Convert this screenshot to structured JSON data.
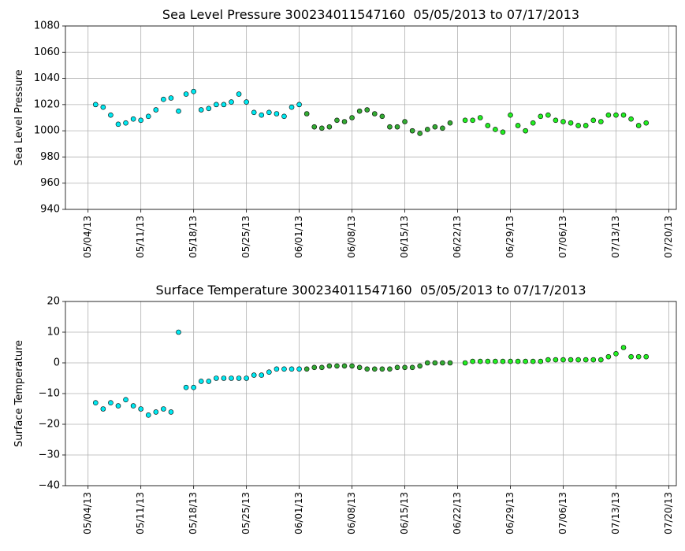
{
  "chart_data": [
    {
      "type": "scatter",
      "title": "Sea Level Pressure 300234011547160  05/05/2013 to 07/17/2013",
      "y_label": "Sea Level Pressure",
      "xlim": [
        "2013-05-01",
        "2013-07-21"
      ],
      "xticks": [
        {
          "value": "2013-05-04",
          "label": "05/04/13"
        },
        {
          "value": "2013-05-11",
          "label": "05/11/13"
        },
        {
          "value": "2013-05-18",
          "label": "05/18/13"
        },
        {
          "value": "2013-05-25",
          "label": "05/25/13"
        },
        {
          "value": "2013-06-01",
          "label": "06/01/13"
        },
        {
          "value": "2013-06-08",
          "label": "06/08/13"
        },
        {
          "value": "2013-06-15",
          "label": "06/15/13"
        },
        {
          "value": "2013-06-22",
          "label": "06/22/13"
        },
        {
          "value": "2013-06-29",
          "label": "06/29/13"
        },
        {
          "value": "2013-07-06",
          "label": "07/06/13"
        },
        {
          "value": "2013-07-13",
          "label": "07/13/13"
        },
        {
          "value": "2013-07-20",
          "label": "07/20/13"
        }
      ],
      "ylim": [
        940,
        1080
      ],
      "yticks": [
        940,
        960,
        980,
        1000,
        1020,
        1040,
        1060,
        1080
      ],
      "grid": true,
      "series": [
        {
          "color": "#00e8f0",
          "x": [
            "2013-05-05",
            "2013-05-06",
            "2013-05-07",
            "2013-05-08",
            "2013-05-09",
            "2013-05-10",
            "2013-05-11",
            "2013-05-12",
            "2013-05-13",
            "2013-05-14",
            "2013-05-15",
            "2013-05-16",
            "2013-05-17",
            "2013-05-18",
            "2013-05-19",
            "2013-05-20",
            "2013-05-21",
            "2013-05-22",
            "2013-05-23",
            "2013-05-24",
            "2013-05-25",
            "2013-05-26",
            "2013-05-27",
            "2013-05-28",
            "2013-05-29",
            "2013-05-30",
            "2013-05-31",
            "2013-06-01"
          ],
          "values": [
            1020,
            1018,
            1012,
            1005,
            1006,
            1009,
            1008,
            1011,
            1016,
            1024,
            1025,
            1015,
            1028,
            1030,
            1016,
            1017,
            1020,
            1020,
            1022,
            1028,
            1022,
            1014,
            1012,
            1014,
            1013,
            1011,
            1018,
            1020
          ]
        },
        {
          "color": "#33aa33",
          "x": [
            "2013-06-02",
            "2013-06-03",
            "2013-06-04",
            "2013-06-05",
            "2013-06-06",
            "2013-06-07",
            "2013-06-08",
            "2013-06-09",
            "2013-06-10",
            "2013-06-11",
            "2013-06-12",
            "2013-06-13",
            "2013-06-14",
            "2013-06-15",
            "2013-06-16",
            "2013-06-17",
            "2013-06-18",
            "2013-06-19",
            "2013-06-20",
            "2013-06-21"
          ],
          "values": [
            1013,
            1003,
            1002,
            1003,
            1008,
            1007,
            1010,
            1015,
            1016,
            1013,
            1011,
            1003,
            1003,
            1007,
            1000,
            998,
            1001,
            1003,
            1002,
            1006
          ]
        },
        {
          "color": "#22ee22",
          "x": [
            "2013-06-23",
            "2013-06-24",
            "2013-06-25",
            "2013-06-26",
            "2013-06-27",
            "2013-06-28",
            "2013-06-29",
            "2013-06-30",
            "2013-07-01",
            "2013-07-02",
            "2013-07-03",
            "2013-07-04",
            "2013-07-05",
            "2013-07-06",
            "2013-07-07",
            "2013-07-08",
            "2013-07-09",
            "2013-07-10",
            "2013-07-11",
            "2013-07-12",
            "2013-07-13",
            "2013-07-14",
            "2013-07-15",
            "2013-07-16",
            "2013-07-17"
          ],
          "values": [
            1008,
            1008,
            1010,
            1004,
            1001,
            999,
            1012,
            1004,
            1000,
            1006,
            1011,
            1012,
            1008,
            1007,
            1006,
            1004,
            1004,
            1008,
            1007,
            1012,
            1012,
            1012,
            1009,
            1004,
            1006
          ]
        }
      ]
    },
    {
      "type": "scatter",
      "title": "Surface Temperature 300234011547160  05/05/2013 to 07/17/2013",
      "y_label": "Surface Temperature",
      "xlim": [
        "2013-05-01",
        "2013-07-21"
      ],
      "xticks": [
        {
          "value": "2013-05-04",
          "label": "05/04/13"
        },
        {
          "value": "2013-05-11",
          "label": "05/11/13"
        },
        {
          "value": "2013-05-18",
          "label": "05/18/13"
        },
        {
          "value": "2013-05-25",
          "label": "05/25/13"
        },
        {
          "value": "2013-06-01",
          "label": "06/01/13"
        },
        {
          "value": "2013-06-08",
          "label": "06/08/13"
        },
        {
          "value": "2013-06-15",
          "label": "06/15/13"
        },
        {
          "value": "2013-06-22",
          "label": "06/22/13"
        },
        {
          "value": "2013-06-29",
          "label": "06/29/13"
        },
        {
          "value": "2013-07-06",
          "label": "07/06/13"
        },
        {
          "value": "2013-07-13",
          "label": "07/13/13"
        },
        {
          "value": "2013-07-20",
          "label": "07/20/13"
        }
      ],
      "ylim": [
        -40,
        20
      ],
      "yticks": [
        {
          "value": -40,
          "label": "−40"
        },
        {
          "value": -30,
          "label": "−30"
        },
        {
          "value": -20,
          "label": "−20"
        },
        {
          "value": -10,
          "label": "−10"
        },
        0,
        10,
        20
      ],
      "grid": true,
      "series": [
        {
          "color": "#00e8f0",
          "x": [
            "2013-05-05",
            "2013-05-06",
            "2013-05-07",
            "2013-05-08",
            "2013-05-09",
            "2013-05-10",
            "2013-05-11",
            "2013-05-12",
            "2013-05-13",
            "2013-05-14",
            "2013-05-15",
            "2013-05-16",
            "2013-05-17",
            "2013-05-18",
            "2013-05-19",
            "2013-05-20",
            "2013-05-21",
            "2013-05-22",
            "2013-05-23",
            "2013-05-24",
            "2013-05-25",
            "2013-05-26",
            "2013-05-27",
            "2013-05-28",
            "2013-05-29",
            "2013-05-30",
            "2013-05-31",
            "2013-06-01"
          ],
          "values": [
            -13,
            -15,
            -13,
            -14,
            -12,
            -14,
            -15,
            -17,
            -16,
            -15,
            -16,
            10,
            -8,
            -8,
            -6,
            -6,
            -5,
            -5,
            -5,
            -5,
            -5,
            -4,
            -4,
            -3,
            -2,
            -2,
            -2,
            -2
          ]
        },
        {
          "color": "#33aa33",
          "x": [
            "2013-06-02",
            "2013-06-03",
            "2013-06-04",
            "2013-06-05",
            "2013-06-06",
            "2013-06-07",
            "2013-06-08",
            "2013-06-09",
            "2013-06-10",
            "2013-06-11",
            "2013-06-12",
            "2013-06-13",
            "2013-06-14",
            "2013-06-15",
            "2013-06-16",
            "2013-06-17",
            "2013-06-18",
            "2013-06-19",
            "2013-06-20",
            "2013-06-21"
          ],
          "values": [
            -2,
            -1.5,
            -1.5,
            -1,
            -1,
            -1,
            -1,
            -1.5,
            -2,
            -2,
            -2,
            -2,
            -1.5,
            -1.5,
            -1.5,
            -1,
            0,
            0,
            0,
            0
          ]
        },
        {
          "color": "#22ee22",
          "x": [
            "2013-06-23",
            "2013-06-24",
            "2013-06-25",
            "2013-06-26",
            "2013-06-27",
            "2013-06-28",
            "2013-06-29",
            "2013-06-30",
            "2013-07-01",
            "2013-07-02",
            "2013-07-03",
            "2013-07-04",
            "2013-07-05",
            "2013-07-06",
            "2013-07-07",
            "2013-07-08",
            "2013-07-09",
            "2013-07-10",
            "2013-07-11",
            "2013-07-12",
            "2013-07-13",
            "2013-07-14",
            "2013-07-15",
            "2013-07-16",
            "2013-07-17"
          ],
          "values": [
            0,
            0.5,
            0.5,
            0.5,
            0.5,
            0.5,
            0.5,
            0.5,
            0.5,
            0.5,
            0.5,
            1,
            1,
            1,
            1,
            1,
            1,
            1,
            1,
            2,
            3,
            5,
            2,
            2,
            2
          ]
        }
      ]
    }
  ]
}
